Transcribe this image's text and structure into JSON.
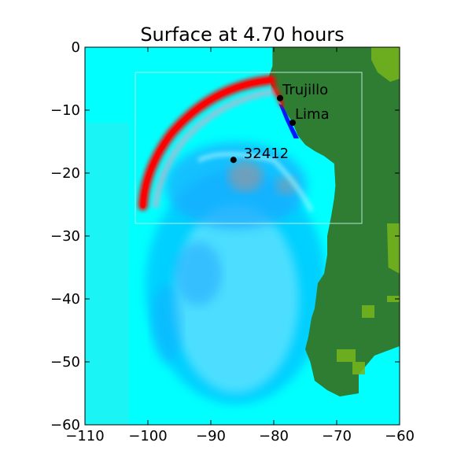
{
  "chart_data": {
    "type": "heatmap",
    "title": "Surface at 4.70 hours",
    "xlabel": "",
    "ylabel": "",
    "xlim": [
      -110,
      -60
    ],
    "ylim": [
      -60,
      0
    ],
    "xticks": [
      -110,
      -100,
      -90,
      -80,
      -70,
      -60
    ],
    "yticks": [
      0,
      -10,
      -20,
      -30,
      -40,
      -50,
      -60
    ],
    "xtick_labels": [
      "−110",
      "−100",
      "−90",
      "−80",
      "−70",
      "−60"
    ],
    "ytick_labels": [
      "0",
      "−10",
      "−20",
      "−30",
      "−40",
      "−50",
      "−60"
    ],
    "grid": false,
    "colors": {
      "ocean": "#00ffff",
      "land": "#2e7d32",
      "land_high": "#76b51c",
      "wave_crest": "#ff0000",
      "wave_trough": "#0000ff",
      "wave_mid": "#00aaff"
    },
    "locations": [
      {
        "name": "Trujillo",
        "lon": -79.0,
        "lat": -8.1
      },
      {
        "name": "Lima",
        "lon": -77.0,
        "lat": -12.0
      },
      {
        "name": "32412",
        "lon": -86.4,
        "lat": -17.9
      }
    ],
    "refinement_boxes": [
      {
        "lon": [
          -102,
          -66
        ],
        "lat": [
          -28,
          -4
        ]
      }
    ]
  }
}
